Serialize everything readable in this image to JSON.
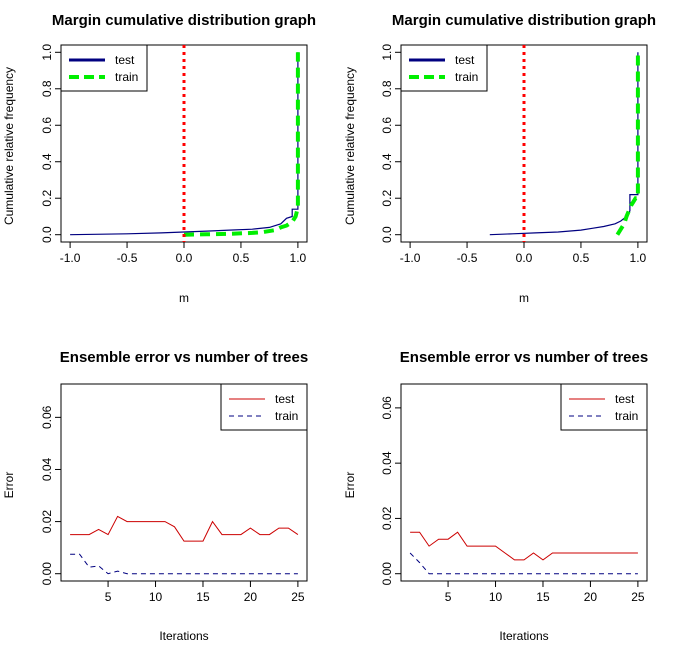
{
  "chart_data": [
    {
      "type": "line",
      "title": "Margin cumulative distribution graph",
      "xlabel": "m",
      "ylabel": "Cumulative relative frequency",
      "xlim": [
        -1.0,
        1.0
      ],
      "ylim": [
        0,
        1.0
      ],
      "xticks": [
        -1.0,
        -0.5,
        0.0,
        0.5,
        1.0
      ],
      "xtick_labels": [
        "-1.0",
        "-0.5",
        "0.0",
        "0.5",
        "1.0"
      ],
      "yticks": [
        0,
        0.2,
        0.4,
        0.6,
        0.8,
        1.0
      ],
      "ytick_labels": [
        "0.0",
        "0.2",
        "0.4",
        "0.6",
        "0.8",
        "1.0"
      ],
      "reference_line": {
        "x": 0,
        "color": "#ff0000"
      },
      "legend": {
        "position": "top-left",
        "entries": [
          "test",
          "train"
        ]
      },
      "series": [
        {
          "name": "test",
          "color": "#000080",
          "x": [
            -1.0,
            -0.5,
            -0.2,
            0.0,
            0.2,
            0.4,
            0.6,
            0.75,
            0.85,
            0.9,
            0.95,
            0.95,
            1.0,
            1.0
          ],
          "y": [
            0.0,
            0.005,
            0.01,
            0.015,
            0.02,
            0.025,
            0.03,
            0.04,
            0.06,
            0.09,
            0.1,
            0.14,
            0.14,
            1.0
          ]
        },
        {
          "name": "train",
          "color": "#00ee00",
          "x": [
            0.0,
            0.2,
            0.4,
            0.6,
            0.7,
            0.8,
            0.85,
            0.9,
            0.95,
            0.98,
            1.0,
            1.0
          ],
          "y": [
            0.0,
            0.002,
            0.005,
            0.01,
            0.015,
            0.025,
            0.04,
            0.05,
            0.07,
            0.1,
            0.15,
            1.0
          ]
        }
      ]
    },
    {
      "type": "line",
      "title": "Margin cumulative distribution graph",
      "xlabel": "m",
      "ylabel": "Cumulative relative frequency",
      "xlim": [
        -1.0,
        1.0
      ],
      "ylim": [
        0,
        1.0
      ],
      "xticks": [
        -1.0,
        -0.5,
        0.0,
        0.5,
        1.0
      ],
      "xtick_labels": [
        "-1.0",
        "-0.5",
        "0.0",
        "0.5",
        "1.0"
      ],
      "yticks": [
        0,
        0.2,
        0.4,
        0.6,
        0.8,
        1.0
      ],
      "ytick_labels": [
        "0.0",
        "0.2",
        "0.4",
        "0.6",
        "0.8",
        "1.0"
      ],
      "reference_line": {
        "x": 0,
        "color": "#ff0000"
      },
      "legend": {
        "position": "top-left",
        "entries": [
          "test",
          "train"
        ]
      },
      "series": [
        {
          "name": "test",
          "color": "#000080",
          "x": [
            -0.3,
            -0.1,
            0.1,
            0.3,
            0.5,
            0.6,
            0.7,
            0.8,
            0.85,
            0.9,
            0.93,
            0.93,
            1.0,
            1.0
          ],
          "y": [
            0.0,
            0.005,
            0.01,
            0.015,
            0.025,
            0.035,
            0.045,
            0.06,
            0.075,
            0.1,
            0.13,
            0.22,
            0.22,
            1.0
          ]
        },
        {
          "name": "train",
          "color": "#00ee00",
          "x": [
            0.82,
            0.85,
            0.88,
            0.9,
            0.92,
            0.94,
            0.96,
            0.98,
            1.0,
            1.0
          ],
          "y": [
            0.0,
            0.03,
            0.06,
            0.1,
            0.13,
            0.16,
            0.18,
            0.2,
            0.2,
            1.0
          ]
        }
      ]
    },
    {
      "type": "line",
      "title": "Ensemble error vs number of trees",
      "xlabel": "Iterations",
      "ylabel": "Error",
      "xlim": [
        1,
        25
      ],
      "ylim": [
        0,
        0.07
      ],
      "xticks": [
        5,
        10,
        15,
        20,
        25
      ],
      "xtick_labels": [
        "5",
        "10",
        "15",
        "20",
        "25"
      ],
      "yticks": [
        0.0,
        0.02,
        0.04,
        0.06
      ],
      "ytick_labels": [
        "0.00",
        "0.02",
        "0.04",
        "0.06"
      ],
      "legend": {
        "position": "top-right",
        "entries": [
          "test",
          "train"
        ]
      },
      "series": [
        {
          "name": "test",
          "color": "#cc0000",
          "x": [
            1,
            2,
            3,
            4,
            5,
            6,
            7,
            8,
            9,
            10,
            11,
            12,
            13,
            14,
            15,
            16,
            17,
            18,
            19,
            20,
            21,
            22,
            23,
            24,
            25
          ],
          "y": [
            0.015,
            0.015,
            0.015,
            0.017,
            0.015,
            0.022,
            0.02,
            0.02,
            0.02,
            0.02,
            0.02,
            0.018,
            0.0125,
            0.0125,
            0.0125,
            0.02,
            0.015,
            0.015,
            0.015,
            0.0175,
            0.015,
            0.015,
            0.0175,
            0.0175,
            0.015
          ]
        },
        {
          "name": "train",
          "color": "#000080",
          "x": [
            1,
            2,
            3,
            4,
            5,
            6,
            7,
            8,
            9,
            10,
            11,
            12,
            13,
            14,
            15,
            16,
            17,
            18,
            19,
            20,
            21,
            22,
            23,
            24,
            25
          ],
          "y": [
            0.0075,
            0.0075,
            0.0025,
            0.003,
            0.0,
            0.001,
            0,
            0,
            0,
            0,
            0,
            0,
            0,
            0,
            0,
            0,
            0,
            0,
            0,
            0,
            0,
            0,
            0,
            0,
            0
          ]
        }
      ]
    },
    {
      "type": "line",
      "title": "Ensemble error vs number of trees",
      "xlabel": "Iterations",
      "ylabel": "Error",
      "xlim": [
        1,
        25
      ],
      "ylim": [
        0,
        0.066
      ],
      "xticks": [
        5,
        10,
        15,
        20,
        25
      ],
      "xtick_labels": [
        "5",
        "10",
        "15",
        "20",
        "25"
      ],
      "yticks": [
        0.0,
        0.02,
        0.04,
        0.06
      ],
      "ytick_labels": [
        "0.00",
        "0.02",
        "0.04",
        "0.06"
      ],
      "legend": {
        "position": "top-right",
        "entries": [
          "test",
          "train"
        ]
      },
      "series": [
        {
          "name": "test",
          "color": "#cc0000",
          "x": [
            1,
            2,
            3,
            4,
            5,
            6,
            7,
            8,
            9,
            10,
            11,
            12,
            13,
            14,
            15,
            16,
            17,
            18,
            19,
            20,
            21,
            22,
            23,
            24,
            25
          ],
          "y": [
            0.015,
            0.015,
            0.01,
            0.0125,
            0.0125,
            0.015,
            0.01,
            0.01,
            0.01,
            0.01,
            0.0075,
            0.005,
            0.005,
            0.0075,
            0.005,
            0.0075,
            0.0075,
            0.0075,
            0.0075,
            0.0075,
            0.0075,
            0.0075,
            0.0075,
            0.0075,
            0.0075
          ]
        },
        {
          "name": "train",
          "color": "#000080",
          "x": [
            1,
            2,
            3,
            4,
            5,
            6,
            7,
            8,
            9,
            10,
            11,
            12,
            13,
            14,
            15,
            16,
            17,
            18,
            19,
            20,
            21,
            22,
            23,
            24,
            25
          ],
          "y": [
            0.0075,
            0.004,
            0.0,
            0,
            0,
            0,
            0,
            0,
            0,
            0,
            0,
            0,
            0,
            0,
            0,
            0,
            0,
            0,
            0,
            0,
            0,
            0,
            0,
            0,
            0
          ]
        }
      ]
    }
  ]
}
